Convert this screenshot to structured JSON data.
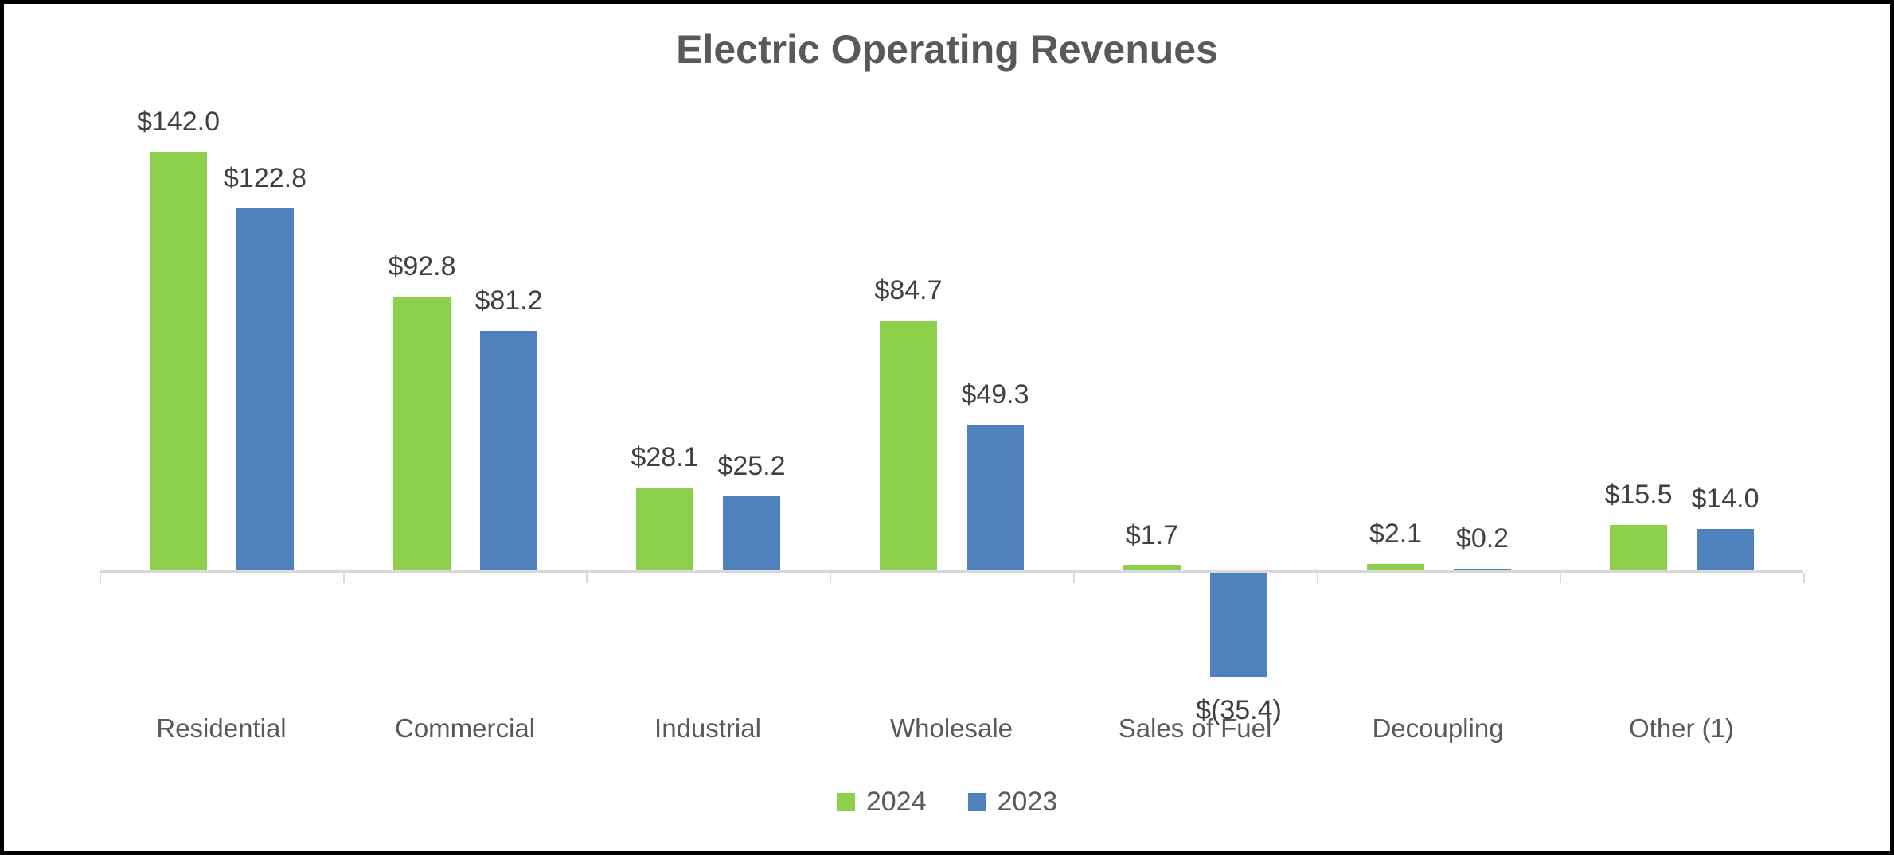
{
  "colors": {
    "background": "#FFFFFF",
    "border": "#000000",
    "axis_line": "#D9D9D9",
    "title_text": "#595959",
    "category_text": "#595959",
    "data_label_text": "#404040",
    "series_2024": "#8CD04C",
    "series_2023": "#4F81BD"
  },
  "chart_data": {
    "type": "bar",
    "title": "Electric Operating Revenues",
    "categories": [
      "Residential",
      "Commercial",
      "Industrial",
      "Wholesale",
      "Sales of Fuel",
      "Decoupling",
      "Other (1)"
    ],
    "series": [
      {
        "name": "2024",
        "color": "#8CD04C",
        "values": [
          142.0,
          92.8,
          28.1,
          84.7,
          1.7,
          2.1,
          15.5
        ],
        "labels": [
          "$142.0",
          "$92.8",
          "$28.1",
          "$84.7",
          "$1.7",
          "$2.1",
          "$15.5"
        ]
      },
      {
        "name": "2023",
        "color": "#4F81BD",
        "values": [
          122.8,
          81.2,
          25.2,
          49.3,
          -35.4,
          0.2,
          14.0
        ],
        "labels": [
          "$122.8",
          "$81.2",
          "$25.2",
          "$49.3",
          "$(35.4)",
          "$0.2",
          "$14.0"
        ]
      }
    ],
    "legend": [
      "2024",
      "2023"
    ],
    "legend_position": "bottom",
    "grid": false,
    "y_axis_visible": false,
    "baseline_value": 0,
    "ylim": [
      -40,
      160
    ]
  }
}
